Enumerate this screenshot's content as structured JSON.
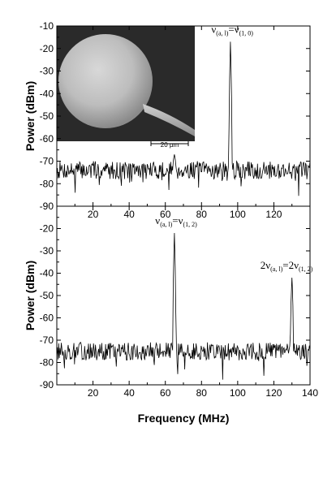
{
  "chart_data": [
    {
      "type": "line",
      "panel": "top",
      "xlabel": "",
      "ylabel": "Power (dBm)",
      "xlim": [
        0,
        140
      ],
      "ylim": [
        -90,
        -10
      ],
      "x_ticks": [
        20,
        40,
        60,
        80,
        100,
        120
      ],
      "x_tick_labels": [
        "20",
        "40",
        "60",
        "80",
        "100",
        "120"
      ],
      "y_ticks": [
        -90,
        -80,
        -70,
        -60,
        -50,
        -40,
        -30,
        -20,
        -10
      ],
      "y_tick_labels": [
        "-90",
        "-80",
        "-70",
        "-60",
        "-50",
        "-40",
        "-30",
        "-20",
        "-10"
      ],
      "noise_floor_dbm": -74,
      "noise_amplitude_db": 4,
      "grid": false,
      "peaks": [
        {
          "x": 96,
          "y": -17
        },
        {
          "x": 65,
          "y": -67
        }
      ],
      "annotations": [
        {
          "text_main": "ν",
          "sub1": "(a, l)",
          "eq": "=ν",
          "sub2": "(1, 0)",
          "x": 97,
          "y": -13
        }
      ],
      "inset": {
        "description": "SEM image of microsphere on fiber stem",
        "scale_label": "20 µm"
      }
    },
    {
      "type": "line",
      "panel": "bottom",
      "xlabel": "Frequency (MHz)",
      "ylabel": "Power (dBm)",
      "xlim": [
        0,
        140
      ],
      "ylim": [
        -90,
        -10
      ],
      "x_ticks": [
        20,
        40,
        60,
        80,
        100,
        120,
        140
      ],
      "x_tick_labels": [
        "20",
        "40",
        "60",
        "80",
        "100",
        "120",
        "140"
      ],
      "y_ticks": [
        -90,
        -80,
        -70,
        -60,
        -50,
        -40,
        -30,
        -20
      ],
      "y_tick_labels": [
        "-90",
        "-80",
        "-70",
        "-60",
        "-50",
        "-40",
        "-30",
        "-20"
      ],
      "noise_floor_dbm": -75,
      "noise_amplitude_db": 4,
      "grid": false,
      "peaks": [
        {
          "x": 65,
          "y": -22
        },
        {
          "x": 130,
          "y": -42
        }
      ],
      "annotations": [
        {
          "text_main": "ν",
          "sub1": "(a, l)",
          "eq": "=ν",
          "sub2": "(1, 2)",
          "x": 66,
          "y": -18
        },
        {
          "text_main": "2ν",
          "sub1": "(a, l)",
          "eq": "=2ν",
          "sub2": "(1, 2)",
          "x": 127,
          "y": -38
        }
      ]
    }
  ]
}
